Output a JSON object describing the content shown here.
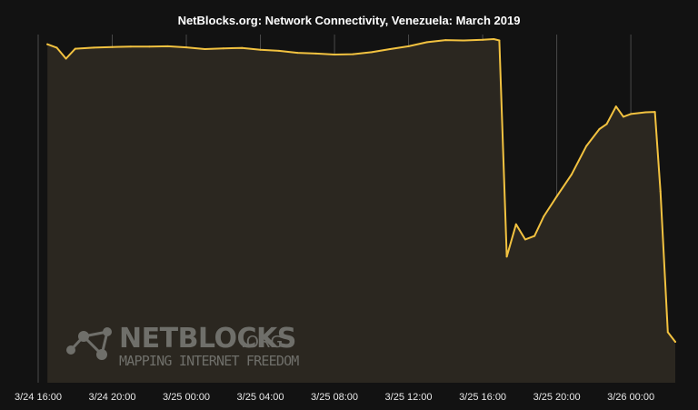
{
  "chart_data": {
    "type": "area",
    "title": "NetBlocks.org: Network Connectivity, Venezuela: March 2019",
    "xlabel": "",
    "ylabel": "",
    "x_tick_labels": [
      "3/24 16:00",
      "3/24 20:00",
      "3/25 00:00",
      "3/25 04:00",
      "3/25 08:00",
      "3/25 12:00",
      "3/25 16:00",
      "3/25 20:00",
      "3/26 00:00"
    ],
    "x_unit": "hours since 3/24 16:00",
    "x_range": [
      0,
      34.4
    ],
    "ylim": [
      0,
      100
    ],
    "grid": "vertical",
    "series": [
      {
        "color": "#f2c240",
        "fill": "#2b2720",
        "points": [
          [
            0.5,
            98.5
          ],
          [
            1.0,
            97.5
          ],
          [
            1.5,
            94.3
          ],
          [
            2.0,
            97.2
          ],
          [
            3.0,
            97.5
          ],
          [
            4.0,
            97.7
          ],
          [
            5.0,
            97.8
          ],
          [
            6.0,
            97.8
          ],
          [
            7.0,
            97.9
          ],
          [
            8.0,
            97.6
          ],
          [
            9.0,
            97.1
          ],
          [
            10.0,
            97.3
          ],
          [
            11.0,
            97.4
          ],
          [
            12.0,
            96.9
          ],
          [
            13.0,
            96.6
          ],
          [
            14.0,
            96.0
          ],
          [
            15.0,
            95.8
          ],
          [
            16.0,
            95.5
          ],
          [
            17.0,
            95.6
          ],
          [
            18.0,
            96.2
          ],
          [
            19.0,
            97.1
          ],
          [
            20.0,
            97.9
          ],
          [
            21.0,
            99.1
          ],
          [
            22.0,
            99.7
          ],
          [
            23.0,
            99.6
          ],
          [
            24.0,
            99.8
          ],
          [
            24.6,
            100.0
          ],
          [
            24.9,
            99.6
          ],
          [
            25.3,
            36.7
          ],
          [
            25.8,
            46.1
          ],
          [
            26.3,
            41.7
          ],
          [
            26.8,
            42.7
          ],
          [
            27.3,
            48.4
          ],
          [
            28.0,
            54.2
          ],
          [
            28.8,
            60.6
          ],
          [
            29.6,
            68.9
          ],
          [
            30.3,
            73.8
          ],
          [
            30.7,
            75.3
          ],
          [
            31.2,
            80.4
          ],
          [
            31.6,
            77.4
          ],
          [
            32.0,
            78.2
          ],
          [
            32.8,
            78.7
          ],
          [
            33.3,
            78.8
          ],
          [
            33.6,
            55.7
          ],
          [
            34.0,
            14.7
          ],
          [
            34.4,
            11.9
          ]
        ]
      }
    ]
  },
  "watermark": {
    "brand": "NETBLOCKS",
    "domain": ".ORG",
    "tagline": "MAPPING INTERNET FREEDOM",
    "color": "#6f6f6a"
  },
  "colors": {
    "background": "#121212",
    "line": "#f2c240",
    "area": "#2b2720",
    "grid": "#494949",
    "text": "#ffffff"
  }
}
